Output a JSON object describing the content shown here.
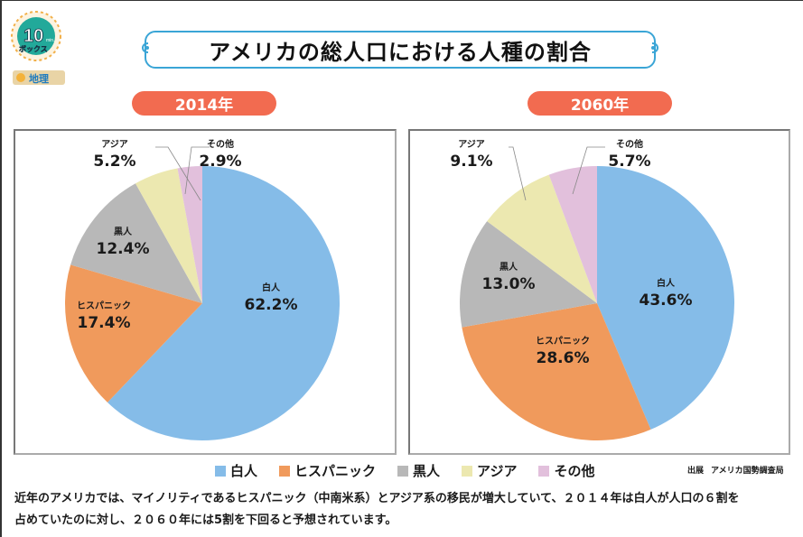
{
  "logo": {
    "main": "10",
    "unit": "min.",
    "sub": "ボックス",
    "subject": "地理"
  },
  "title": "アメリカの総人口における人種の割合",
  "colors": {
    "white": "#85bce8",
    "hispanic": "#f09a5c",
    "black": "#b8b8b8",
    "asian": "#ece8b0",
    "other": "#e2c0dc",
    "accent": "#f26b50",
    "title_border": "#3aa5d6"
  },
  "legend": [
    {
      "label": "白人",
      "color": "#85bce8"
    },
    {
      "label": "ヒスパニック",
      "color": "#f09a5c"
    },
    {
      "label": "黒人",
      "color": "#b8b8b8"
    },
    {
      "label": "アジア",
      "color": "#ece8b0"
    },
    {
      "label": "その他",
      "color": "#e2c0dc"
    }
  ],
  "source": {
    "label": "出展",
    "value": "アメリカ国勢調査局"
  },
  "description": [
    "近年のアメリカでは、マイノリティであるヒスパニック（中南米系）とアジア系の移民が増大していて、２０１４年は白人が人口の６割を",
    "占めていたのに対し、２０６０年には5割を下回ると予想されています。"
  ],
  "chart_data": [
    {
      "type": "pie",
      "title": "2014年",
      "categories": [
        "白人",
        "ヒスパニック",
        "黒人",
        "アジア",
        "その他"
      ],
      "values": [
        62.2,
        17.4,
        12.4,
        5.2,
        2.9
      ],
      "labels": [
        "62.2%",
        "17.4%",
        "12.4%",
        "5.2%",
        "2.9%"
      ],
      "start": "12 o'clock",
      "direction": "clockwise"
    },
    {
      "type": "pie",
      "title": "2060年",
      "categories": [
        "白人",
        "ヒスパニック",
        "黒人",
        "アジア",
        "その他"
      ],
      "values": [
        43.6,
        28.6,
        13.0,
        9.1,
        5.7
      ],
      "labels": [
        "43.6%",
        "28.6%",
        "13.0%",
        "9.1%",
        "5.7%"
      ],
      "start": "12 o'clock",
      "direction": "clockwise"
    }
  ]
}
